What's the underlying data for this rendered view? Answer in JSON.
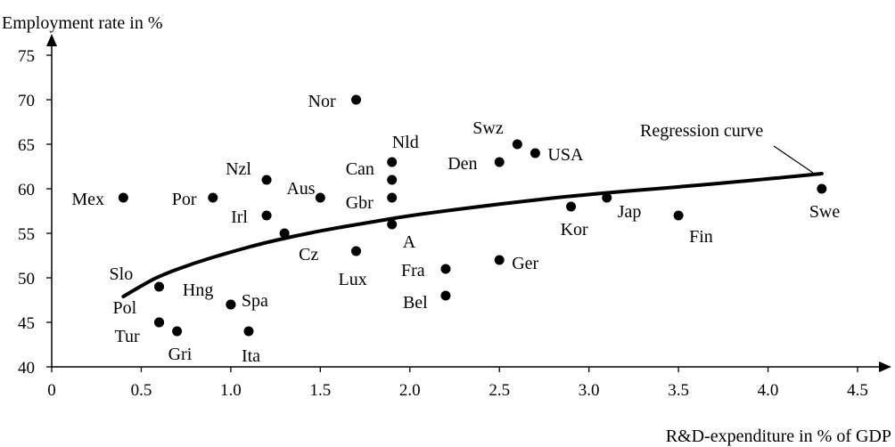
{
  "chart_data": {
    "type": "scatter",
    "title": "",
    "ylabel": "Employment rate in %",
    "xlabel": "R&D-expenditure in % of GDP",
    "xlim": [
      0,
      4.5
    ],
    "ylim": [
      40,
      75
    ],
    "x_ticks": [
      0,
      0.5,
      1.0,
      1.5,
      2.0,
      2.5,
      3.0,
      3.5,
      4.0,
      4.5
    ],
    "x_tick_labels": [
      "0",
      "0.5",
      "1.0",
      "1.5",
      "2.0",
      "2.5",
      "3.0",
      "3.5",
      "4.0",
      "4.5"
    ],
    "y_ticks": [
      40,
      45,
      50,
      55,
      60,
      65,
      70,
      75
    ],
    "y_tick_labels": [
      "40",
      "45",
      "50",
      "55",
      "60",
      "65",
      "70",
      "75"
    ],
    "grid": false,
    "points": [
      {
        "label": "Mex",
        "x": 0.4,
        "y": 59
      },
      {
        "label": "Por",
        "x": 0.9,
        "y": 59
      },
      {
        "label": "Nzl",
        "x": 1.2,
        "y": 61
      },
      {
        "label": "Irl",
        "x": 1.2,
        "y": 57
      },
      {
        "label": "Aus",
        "x": 1.5,
        "y": 59
      },
      {
        "label": "Cz",
        "x": 1.3,
        "y": 55
      },
      {
        "label": "Nor",
        "x": 1.7,
        "y": 70
      },
      {
        "label": "Lux",
        "x": 1.7,
        "y": 53
      },
      {
        "label": "Nld",
        "x": 1.9,
        "y": 63
      },
      {
        "label": "Can",
        "x": 1.9,
        "y": 61
      },
      {
        "label": "Gbr",
        "x": 1.9,
        "y": 59
      },
      {
        "label": "A",
        "x": 1.9,
        "y": 56
      },
      {
        "label": "Fra",
        "x": 2.2,
        "y": 51
      },
      {
        "label": "Bel",
        "x": 2.2,
        "y": 48
      },
      {
        "label": "Den",
        "x": 2.5,
        "y": 63
      },
      {
        "label": "Ger",
        "x": 2.5,
        "y": 52
      },
      {
        "label": "Swz",
        "x": 2.6,
        "y": 65
      },
      {
        "label": "USA",
        "x": 2.7,
        "y": 64
      },
      {
        "label": "Kor",
        "x": 2.9,
        "y": 58
      },
      {
        "label": "Jap",
        "x": 3.1,
        "y": 59
      },
      {
        "label": "Fin",
        "x": 3.5,
        "y": 57
      },
      {
        "label": "Swe",
        "x": 4.3,
        "y": 60
      },
      {
        "label": "Slo",
        "x": 0.6,
        "y": 49
      },
      {
        "label": "Pol",
        "x": 0.6,
        "y": 45
      },
      {
        "label": "Tur",
        "x": 0.6,
        "y": 45
      },
      {
        "label": "Gri",
        "x": 0.7,
        "y": 44
      },
      {
        "label": "Hng",
        "x": 1.0,
        "y": 47
      },
      {
        "label": "Spa",
        "x": 1.0,
        "y": 47
      },
      {
        "label": "Ita",
        "x": 1.1,
        "y": 44
      }
    ],
    "regression_curve": {
      "label": "Regression curve",
      "points": [
        [
          0.4,
          47.9
        ],
        [
          0.5,
          49.1
        ],
        [
          0.6,
          50.2
        ],
        [
          0.8,
          51.7
        ],
        [
          1.0,
          52.9
        ],
        [
          1.2,
          54.0
        ],
        [
          1.5,
          55.3
        ],
        [
          1.8,
          56.3
        ],
        [
          2.0,
          57.0
        ],
        [
          2.5,
          58.3
        ],
        [
          3.0,
          59.4
        ],
        [
          3.5,
          60.2
        ],
        [
          4.0,
          61.1
        ],
        [
          4.3,
          61.7
        ]
      ]
    }
  }
}
